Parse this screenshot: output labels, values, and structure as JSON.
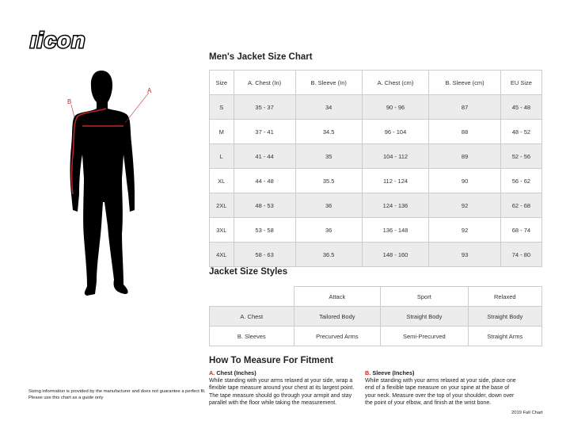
{
  "brand": {
    "logo_text": "icon"
  },
  "figure": {
    "label_a": "A",
    "label_b": "B",
    "accent": "#c0272d"
  },
  "size_chart": {
    "title": "Men's Jacket Size Chart",
    "headers": [
      "Size",
      "A. Chest (In)",
      "B. Sleeve (In)",
      "A. Chest (cm)",
      "B. Sleeve (cm)",
      "EU Size"
    ],
    "rows": [
      [
        "S",
        "35 - 37",
        "34",
        "90 - 96",
        "87",
        "45 - 48"
      ],
      [
        "M",
        "37 - 41",
        "34.5",
        "96 - 104",
        "88",
        "48 - 52"
      ],
      [
        "L",
        "41 - 44",
        "35",
        "104 - 112",
        "89",
        "52 - 56"
      ],
      [
        "XL",
        "44 - 48",
        "35.5",
        "112 - 124",
        "90",
        "56 - 62"
      ],
      [
        "2XL",
        "48 - 53",
        "36",
        "124 - 136",
        "92",
        "62 - 68"
      ],
      [
        "3XL",
        "53 - 58",
        "36",
        "136 - 148",
        "92",
        "68 - 74"
      ],
      [
        "4XL",
        "58 - 63",
        "36.5",
        "148 - 160",
        "93",
        "74 - 80"
      ]
    ]
  },
  "styles": {
    "title": "Jacket Size Styles",
    "headers": [
      "Attack",
      "Sport",
      "Relaxed"
    ],
    "rows": [
      [
        "A. Chest",
        "Tailored Body",
        "Straight Body",
        "Straight Body"
      ],
      [
        "B. Sleeves",
        "Precurved Arms",
        "Semi-Precurved",
        "Straight Arms"
      ]
    ]
  },
  "measure": {
    "title": "How To Measure For Fitment",
    "a_letter": "A.",
    "a_title": "Chest (Inches)",
    "a_text": "While standing with your arms relaxed at your side, wrap a flexible tape measure around your chest at its largest point. The tape measure should go through your armpit and stay parallel with the floor while taking the measurement.",
    "b_letter": "B.",
    "b_title": "Sleeve (Inches)",
    "b_text": "While standing with your arms relaxed at your side, place one end of a flexible tape measure on your spine at the base of your neck. Measure over the top of your shoulder, down over the point of your elbow, and finish at the wrist bone."
  },
  "disclaimer": {
    "line1": "Sizing information is provided by the manufacturer and does not guarantee a perfect fit.",
    "line2": "Please use this chart as a guide only"
  },
  "footer": {
    "edition": "2019 Fall Chart"
  }
}
